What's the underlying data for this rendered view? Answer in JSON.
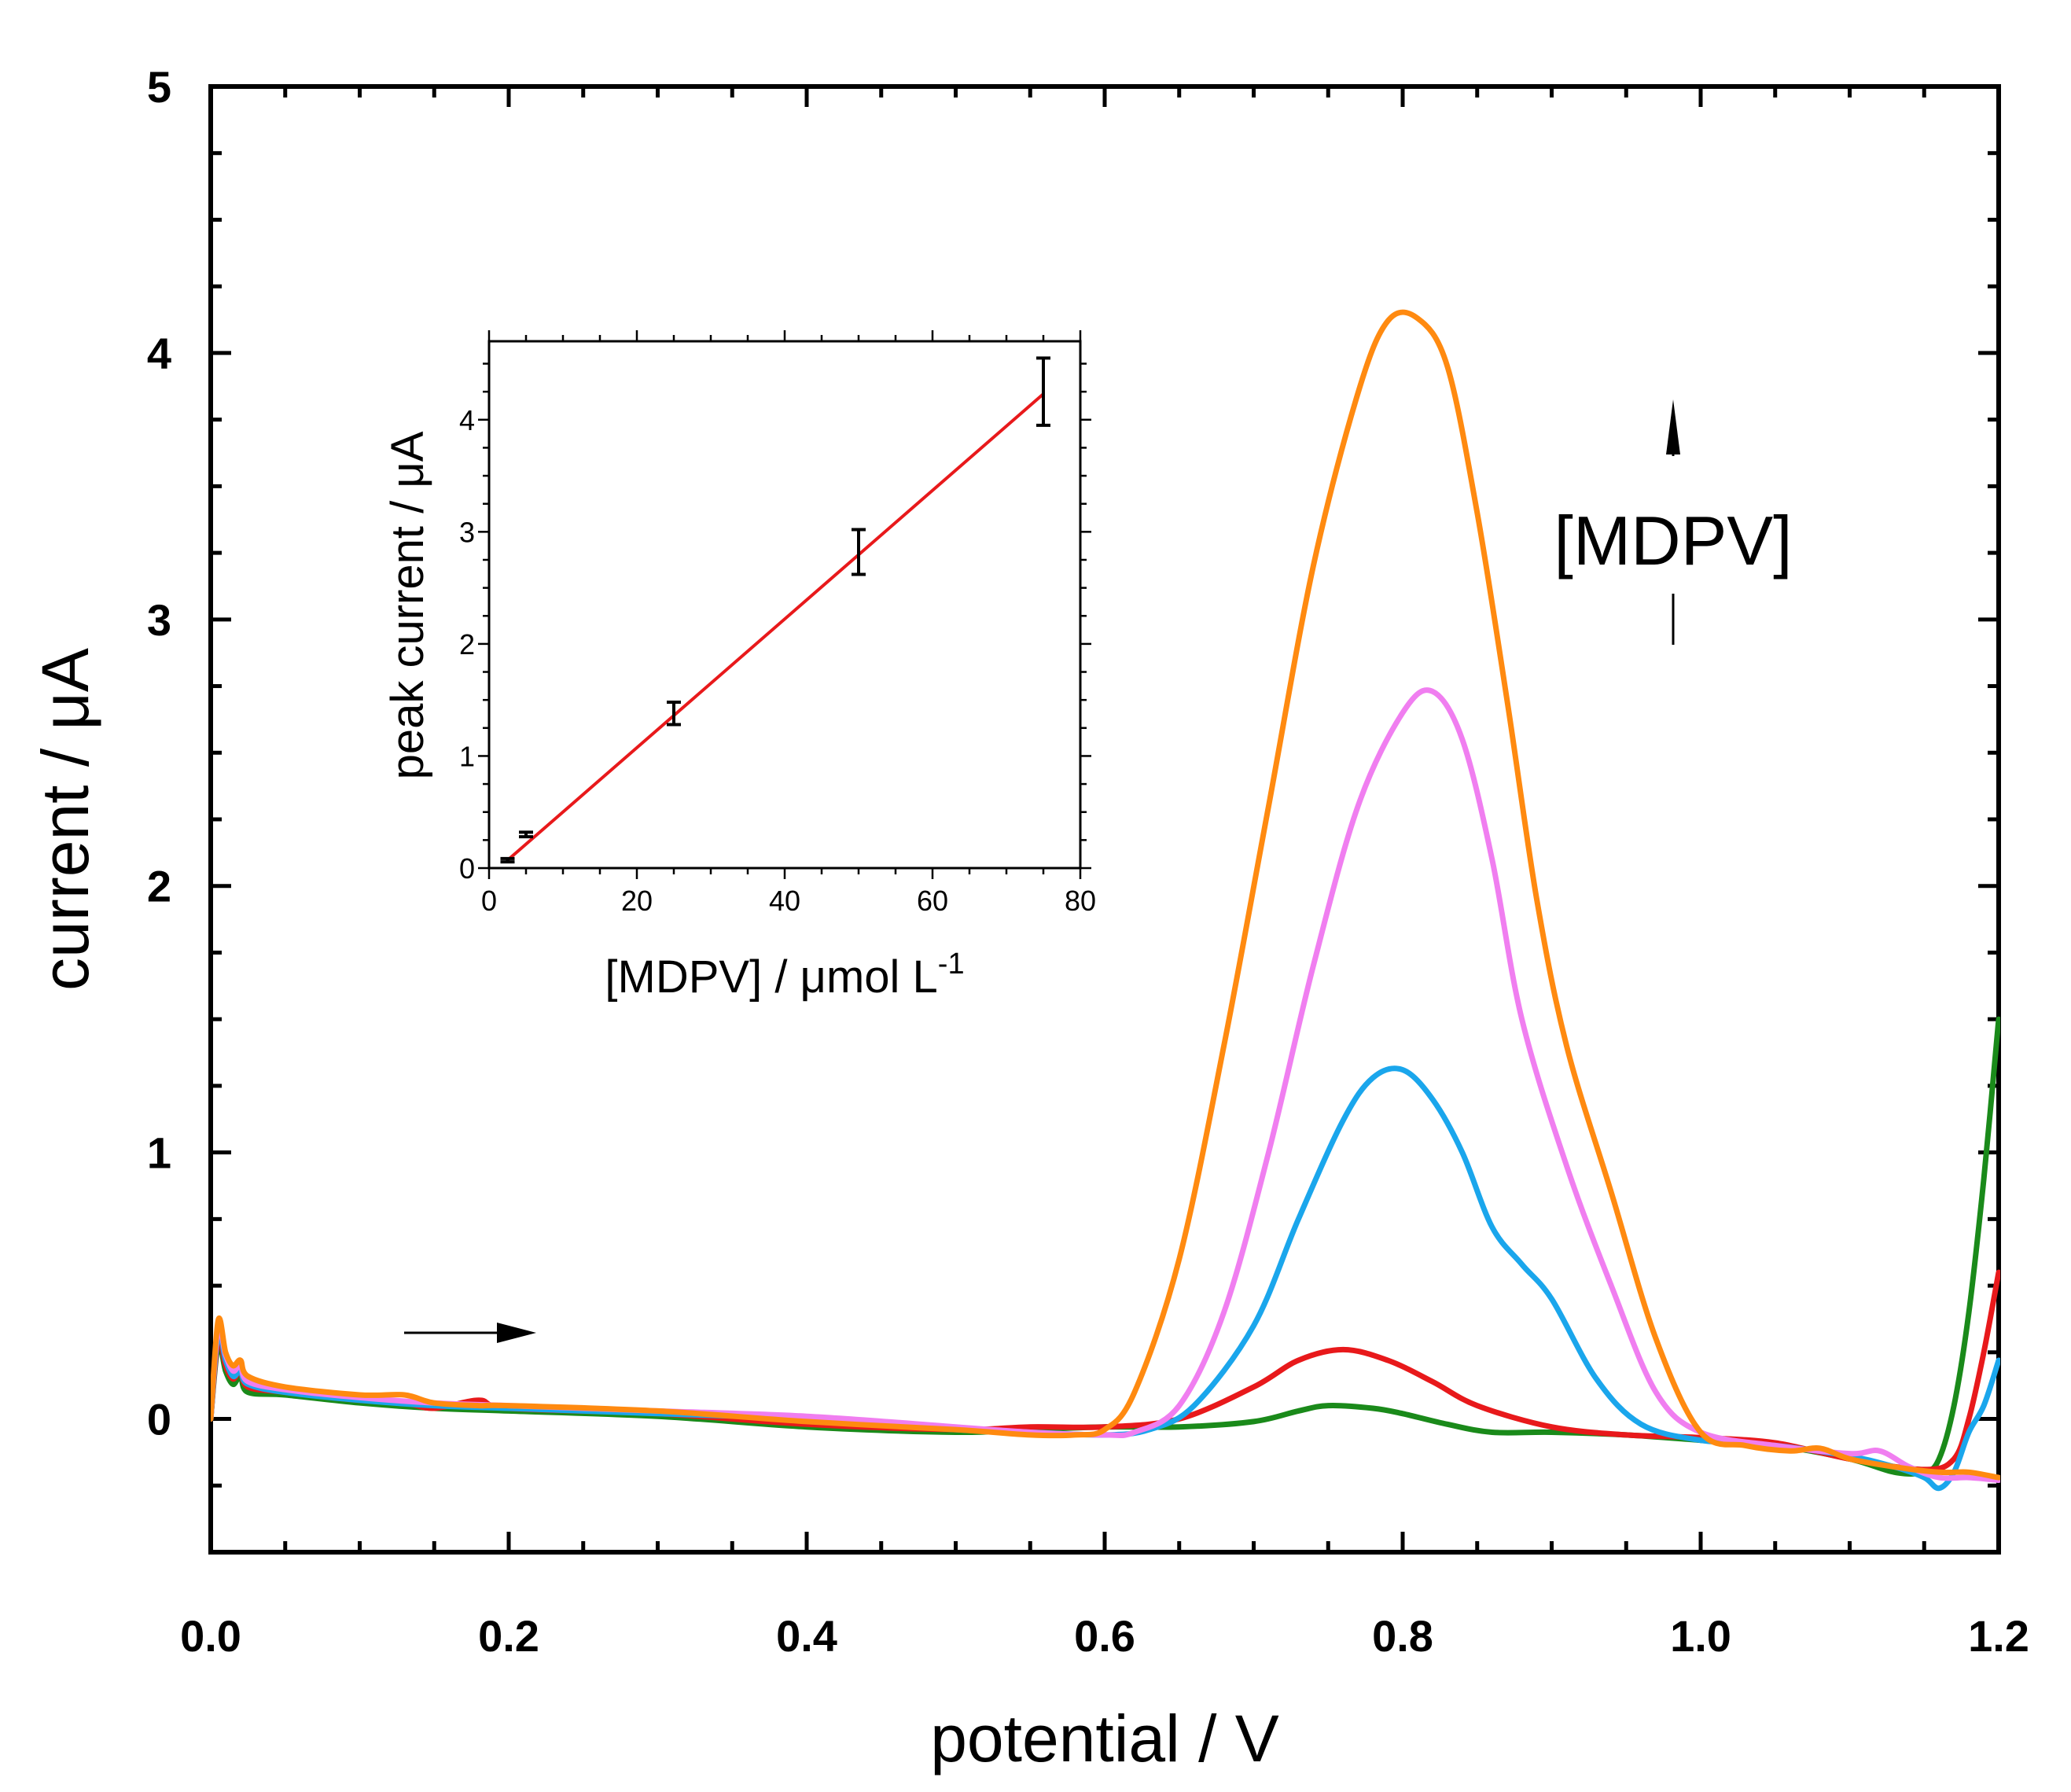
{
  "chart_data": [
    {
      "type": "line",
      "title": "",
      "xlabel": "potential / V",
      "ylabel": "current / μA",
      "xlim": [
        0.0,
        1.2
      ],
      "ylim": [
        -0.5,
        5.0
      ],
      "xticks": [
        "0.0",
        "0.2",
        "0.4",
        "0.6",
        "0.8",
        "1.0",
        "1.2"
      ],
      "yticks": [
        "0",
        "1",
        "2",
        "3",
        "4",
        "5"
      ],
      "grid": false,
      "annotations": {
        "concentration_label": "[MDPV]",
        "scan_direction": "arrow pointing to increasing potential"
      },
      "series": [
        {
          "name": "green",
          "color": "#1a8a1a",
          "x": [
            0.0,
            0.005,
            0.01,
            0.015,
            0.02,
            0.025,
            0.05,
            0.1,
            0.15,
            0.2,
            0.3,
            0.4,
            0.5,
            0.55,
            0.6,
            0.65,
            0.7,
            0.73,
            0.75,
            0.78,
            0.8,
            0.83,
            0.86,
            0.9,
            0.95,
            1.0,
            1.05,
            1.1,
            1.13,
            1.15,
            1.16,
            1.17,
            1.18,
            1.19,
            1.2
          ],
          "y": [
            0.0,
            0.28,
            0.18,
            0.13,
            0.16,
            0.1,
            0.09,
            0.06,
            0.04,
            0.03,
            0.01,
            -0.03,
            -0.05,
            -0.04,
            -0.03,
            -0.03,
            -0.01,
            0.03,
            0.05,
            0.04,
            0.02,
            -0.02,
            -0.05,
            -0.05,
            -0.06,
            -0.08,
            -0.1,
            -0.15,
            -0.2,
            -0.2,
            -0.15,
            0.05,
            0.4,
            0.9,
            1.5
          ]
        },
        {
          "name": "red",
          "color": "#e8191b",
          "x": [
            0.0,
            0.005,
            0.01,
            0.015,
            0.02,
            0.025,
            0.05,
            0.1,
            0.13,
            0.15,
            0.18,
            0.2,
            0.3,
            0.4,
            0.5,
            0.55,
            0.6,
            0.65,
            0.7,
            0.73,
            0.76,
            0.79,
            0.82,
            0.85,
            0.9,
            0.95,
            1.0,
            1.05,
            1.1,
            1.15,
            1.17,
            1.18,
            1.19,
            1.2
          ],
          "y": [
            0.0,
            0.3,
            0.2,
            0.15,
            0.18,
            0.12,
            0.1,
            0.07,
            0.06,
            0.04,
            0.07,
            0.04,
            0.02,
            -0.02,
            -0.04,
            -0.03,
            -0.03,
            0.0,
            0.12,
            0.22,
            0.26,
            0.22,
            0.14,
            0.05,
            -0.03,
            -0.06,
            -0.07,
            -0.09,
            -0.15,
            -0.19,
            -0.15,
            0.0,
            0.25,
            0.55
          ]
        },
        {
          "name": "blue",
          "color": "#1aa6ec",
          "x": [
            0.0,
            0.005,
            0.01,
            0.015,
            0.02,
            0.025,
            0.05,
            0.1,
            0.15,
            0.2,
            0.3,
            0.4,
            0.5,
            0.55,
            0.6,
            0.63,
            0.66,
            0.7,
            0.73,
            0.76,
            0.78,
            0.8,
            0.82,
            0.84,
            0.86,
            0.88,
            0.9,
            0.93,
            0.96,
            1.0,
            1.05,
            1.1,
            1.13,
            1.15,
            1.16,
            1.17,
            1.18,
            1.19,
            1.2
          ],
          "y": [
            0.0,
            0.32,
            0.22,
            0.16,
            0.18,
            0.13,
            0.1,
            0.07,
            0.05,
            0.04,
            0.02,
            0.0,
            -0.04,
            -0.05,
            -0.06,
            -0.04,
            0.05,
            0.35,
            0.75,
            1.12,
            1.28,
            1.31,
            1.2,
            1.0,
            0.72,
            0.58,
            0.45,
            0.15,
            -0.02,
            -0.08,
            -0.1,
            -0.14,
            -0.18,
            -0.22,
            -0.26,
            -0.2,
            -0.05,
            0.05,
            0.22
          ]
        },
        {
          "name": "pink",
          "color": "#f07ef0",
          "x": [
            0.0,
            0.005,
            0.01,
            0.015,
            0.02,
            0.025,
            0.05,
            0.1,
            0.15,
            0.2,
            0.3,
            0.4,
            0.5,
            0.55,
            0.6,
            0.62,
            0.65,
            0.68,
            0.71,
            0.74,
            0.77,
            0.8,
            0.82,
            0.84,
            0.86,
            0.88,
            0.91,
            0.94,
            0.97,
            1.0,
            1.05,
            1.1,
            1.12,
            1.14,
            1.16,
            1.18,
            1.2
          ],
          "y": [
            0.0,
            0.34,
            0.24,
            0.18,
            0.2,
            0.14,
            0.11,
            0.08,
            0.06,
            0.05,
            0.03,
            0.01,
            -0.03,
            -0.05,
            -0.06,
            -0.05,
            0.05,
            0.4,
            1.0,
            1.7,
            2.3,
            2.65,
            2.73,
            2.55,
            2.1,
            1.5,
            0.95,
            0.5,
            0.1,
            -0.05,
            -0.1,
            -0.13,
            -0.12,
            -0.18,
            -0.22,
            -0.22,
            -0.23
          ]
        },
        {
          "name": "orange",
          "color": "#ff8a10",
          "x": [
            0.0,
            0.005,
            0.01,
            0.015,
            0.02,
            0.025,
            0.05,
            0.1,
            0.13,
            0.15,
            0.18,
            0.2,
            0.3,
            0.4,
            0.5,
            0.55,
            0.58,
            0.6,
            0.62,
            0.65,
            0.68,
            0.71,
            0.74,
            0.77,
            0.79,
            0.81,
            0.83,
            0.85,
            0.87,
            0.89,
            0.91,
            0.94,
            0.97,
            1.0,
            1.03,
            1.06,
            1.08,
            1.1,
            1.13,
            1.16,
            1.18,
            1.2
          ],
          "y": [
            0.0,
            0.37,
            0.25,
            0.2,
            0.22,
            0.16,
            0.12,
            0.09,
            0.09,
            0.06,
            0.05,
            0.05,
            0.03,
            -0.01,
            -0.04,
            -0.06,
            -0.06,
            -0.04,
            0.1,
            0.6,
            1.4,
            2.3,
            3.2,
            3.85,
            4.12,
            4.13,
            3.95,
            3.4,
            2.7,
            1.95,
            1.4,
            0.85,
            0.3,
            -0.05,
            -0.1,
            -0.12,
            -0.11,
            -0.15,
            -0.18,
            -0.2,
            -0.2,
            -0.22
          ]
        }
      ]
    },
    {
      "type": "scatter",
      "title": "inset",
      "xlabel": "[MDPV] / μmol L",
      "xlabel_superscript": "-1",
      "ylabel": "peak current / μA",
      "xlim": [
        0,
        80
      ],
      "ylim": [
        0,
        4.7
      ],
      "xticks": [
        "0",
        "20",
        "40",
        "60",
        "80"
      ],
      "yticks": [
        "0",
        "1",
        "2",
        "3",
        "4"
      ],
      "points": [
        {
          "x": 2.5,
          "y": 0.07,
          "err": 0.015
        },
        {
          "x": 5,
          "y": 0.3,
          "err": 0.02
        },
        {
          "x": 25,
          "y": 1.38,
          "err": 0.1
        },
        {
          "x": 50,
          "y": 2.82,
          "err": 0.2
        },
        {
          "x": 75,
          "y": 4.25,
          "err": 0.3
        }
      ],
      "fit": {
        "x": [
          2.5,
          75
        ],
        "y": [
          0.07,
          4.23
        ],
        "color": "#e8191b"
      }
    }
  ]
}
